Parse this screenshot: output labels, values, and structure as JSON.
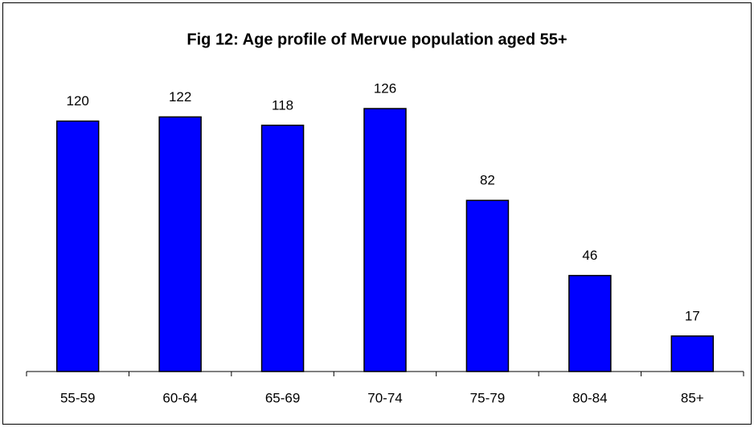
{
  "chart_data": {
    "type": "bar",
    "title": "Fig 12: Age profile of Mervue population aged 55+",
    "categories": [
      "55-59",
      "60-64",
      "65-69",
      "70-74",
      "75-79",
      "80-84",
      "85+"
    ],
    "values": [
      120,
      122,
      118,
      126,
      82,
      46,
      17
    ],
    "color": "#0000ff"
  }
}
